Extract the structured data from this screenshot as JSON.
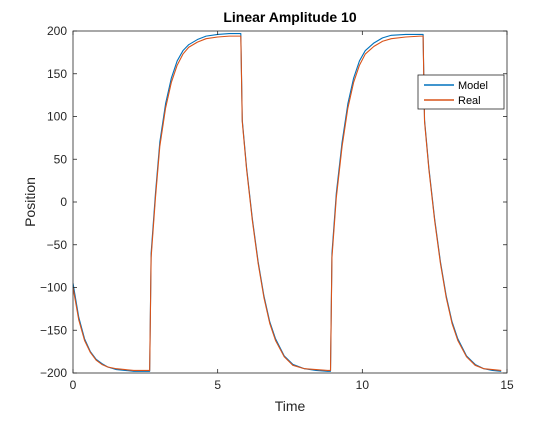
{
  "chart_data": {
    "type": "line",
    "title": "Linear Amplitude 10",
    "xlabel": "Time",
    "ylabel": "Position",
    "xlim": [
      0,
      15
    ],
    "ylim": [
      -200,
      200
    ],
    "xticks": [
      0,
      5,
      10,
      15
    ],
    "yticks": [
      -200,
      -150,
      -100,
      -50,
      0,
      50,
      100,
      150,
      200
    ],
    "grid": false,
    "legend_position": "top-right",
    "series": [
      {
        "name": "Model",
        "color": "#0072BD",
        "x": [
          0,
          0.2,
          0.4,
          0.6,
          0.8,
          1.0,
          1.2,
          1.5,
          1.8,
          2.1,
          2.4,
          2.65,
          2.7,
          2.85,
          3.0,
          3.2,
          3.4,
          3.6,
          3.8,
          4.0,
          4.3,
          4.6,
          5.0,
          5.4,
          5.8,
          5.85,
          6.0,
          6.2,
          6.4,
          6.6,
          6.8,
          7.0,
          7.3,
          7.6,
          8.0,
          8.4,
          8.8,
          8.9,
          8.95,
          9.1,
          9.3,
          9.5,
          9.7,
          9.9,
          10.1,
          10.4,
          10.7,
          11.0,
          11.5,
          12.0,
          12.1,
          12.15,
          12.3,
          12.5,
          12.7,
          12.9,
          13.1,
          13.3,
          13.6,
          13.9,
          14.2,
          14.5,
          14.8
        ],
        "y": [
          -95,
          -135,
          -160,
          -175,
          -184,
          -189,
          -193,
          -196,
          -197,
          -198,
          -198,
          -198,
          -60,
          10,
          70,
          115,
          145,
          165,
          177,
          184,
          190,
          194,
          196,
          197,
          197,
          96,
          40,
          -20,
          -70,
          -110,
          -140,
          -160,
          -180,
          -190,
          -195,
          -197,
          -198,
          -198,
          -60,
          10,
          70,
          115,
          145,
          165,
          177,
          186,
          192,
          195,
          196,
          196,
          196,
          96,
          40,
          -20,
          -70,
          -110,
          -140,
          -160,
          -180,
          -190,
          -195,
          -197,
          -198
        ]
      },
      {
        "name": "Real",
        "color": "#D95319",
        "x": [
          0,
          0.2,
          0.4,
          0.6,
          0.8,
          1.0,
          1.2,
          1.5,
          1.8,
          2.1,
          2.4,
          2.65,
          2.7,
          2.85,
          3.0,
          3.2,
          3.4,
          3.6,
          3.8,
          4.0,
          4.3,
          4.6,
          5.0,
          5.4,
          5.8,
          5.85,
          6.0,
          6.2,
          6.4,
          6.6,
          6.8,
          7.0,
          7.3,
          7.6,
          8.0,
          8.4,
          8.8,
          8.9,
          8.95,
          9.1,
          9.3,
          9.5,
          9.7,
          9.9,
          10.1,
          10.4,
          10.7,
          11.0,
          11.5,
          12.0,
          12.1,
          12.15,
          12.3,
          12.5,
          12.7,
          12.9,
          13.1,
          13.3,
          13.6,
          13.9,
          14.2,
          14.5,
          14.8
        ],
        "y": [
          -100,
          -138,
          -162,
          -176,
          -185,
          -190,
          -193,
          -195,
          -196,
          -197,
          -197,
          -197,
          -65,
          5,
          65,
          110,
          140,
          160,
          173,
          181,
          187,
          191,
          193,
          194,
          194,
          94,
          38,
          -22,
          -72,
          -112,
          -142,
          -162,
          -181,
          -191,
          -195,
          -196,
          -197,
          -197,
          -65,
          5,
          65,
          110,
          140,
          160,
          173,
          182,
          188,
          191,
          193,
          194,
          194,
          94,
          38,
          -22,
          -72,
          -112,
          -142,
          -162,
          -181,
          -191,
          -195,
          -196,
          -197
        ]
      }
    ]
  }
}
